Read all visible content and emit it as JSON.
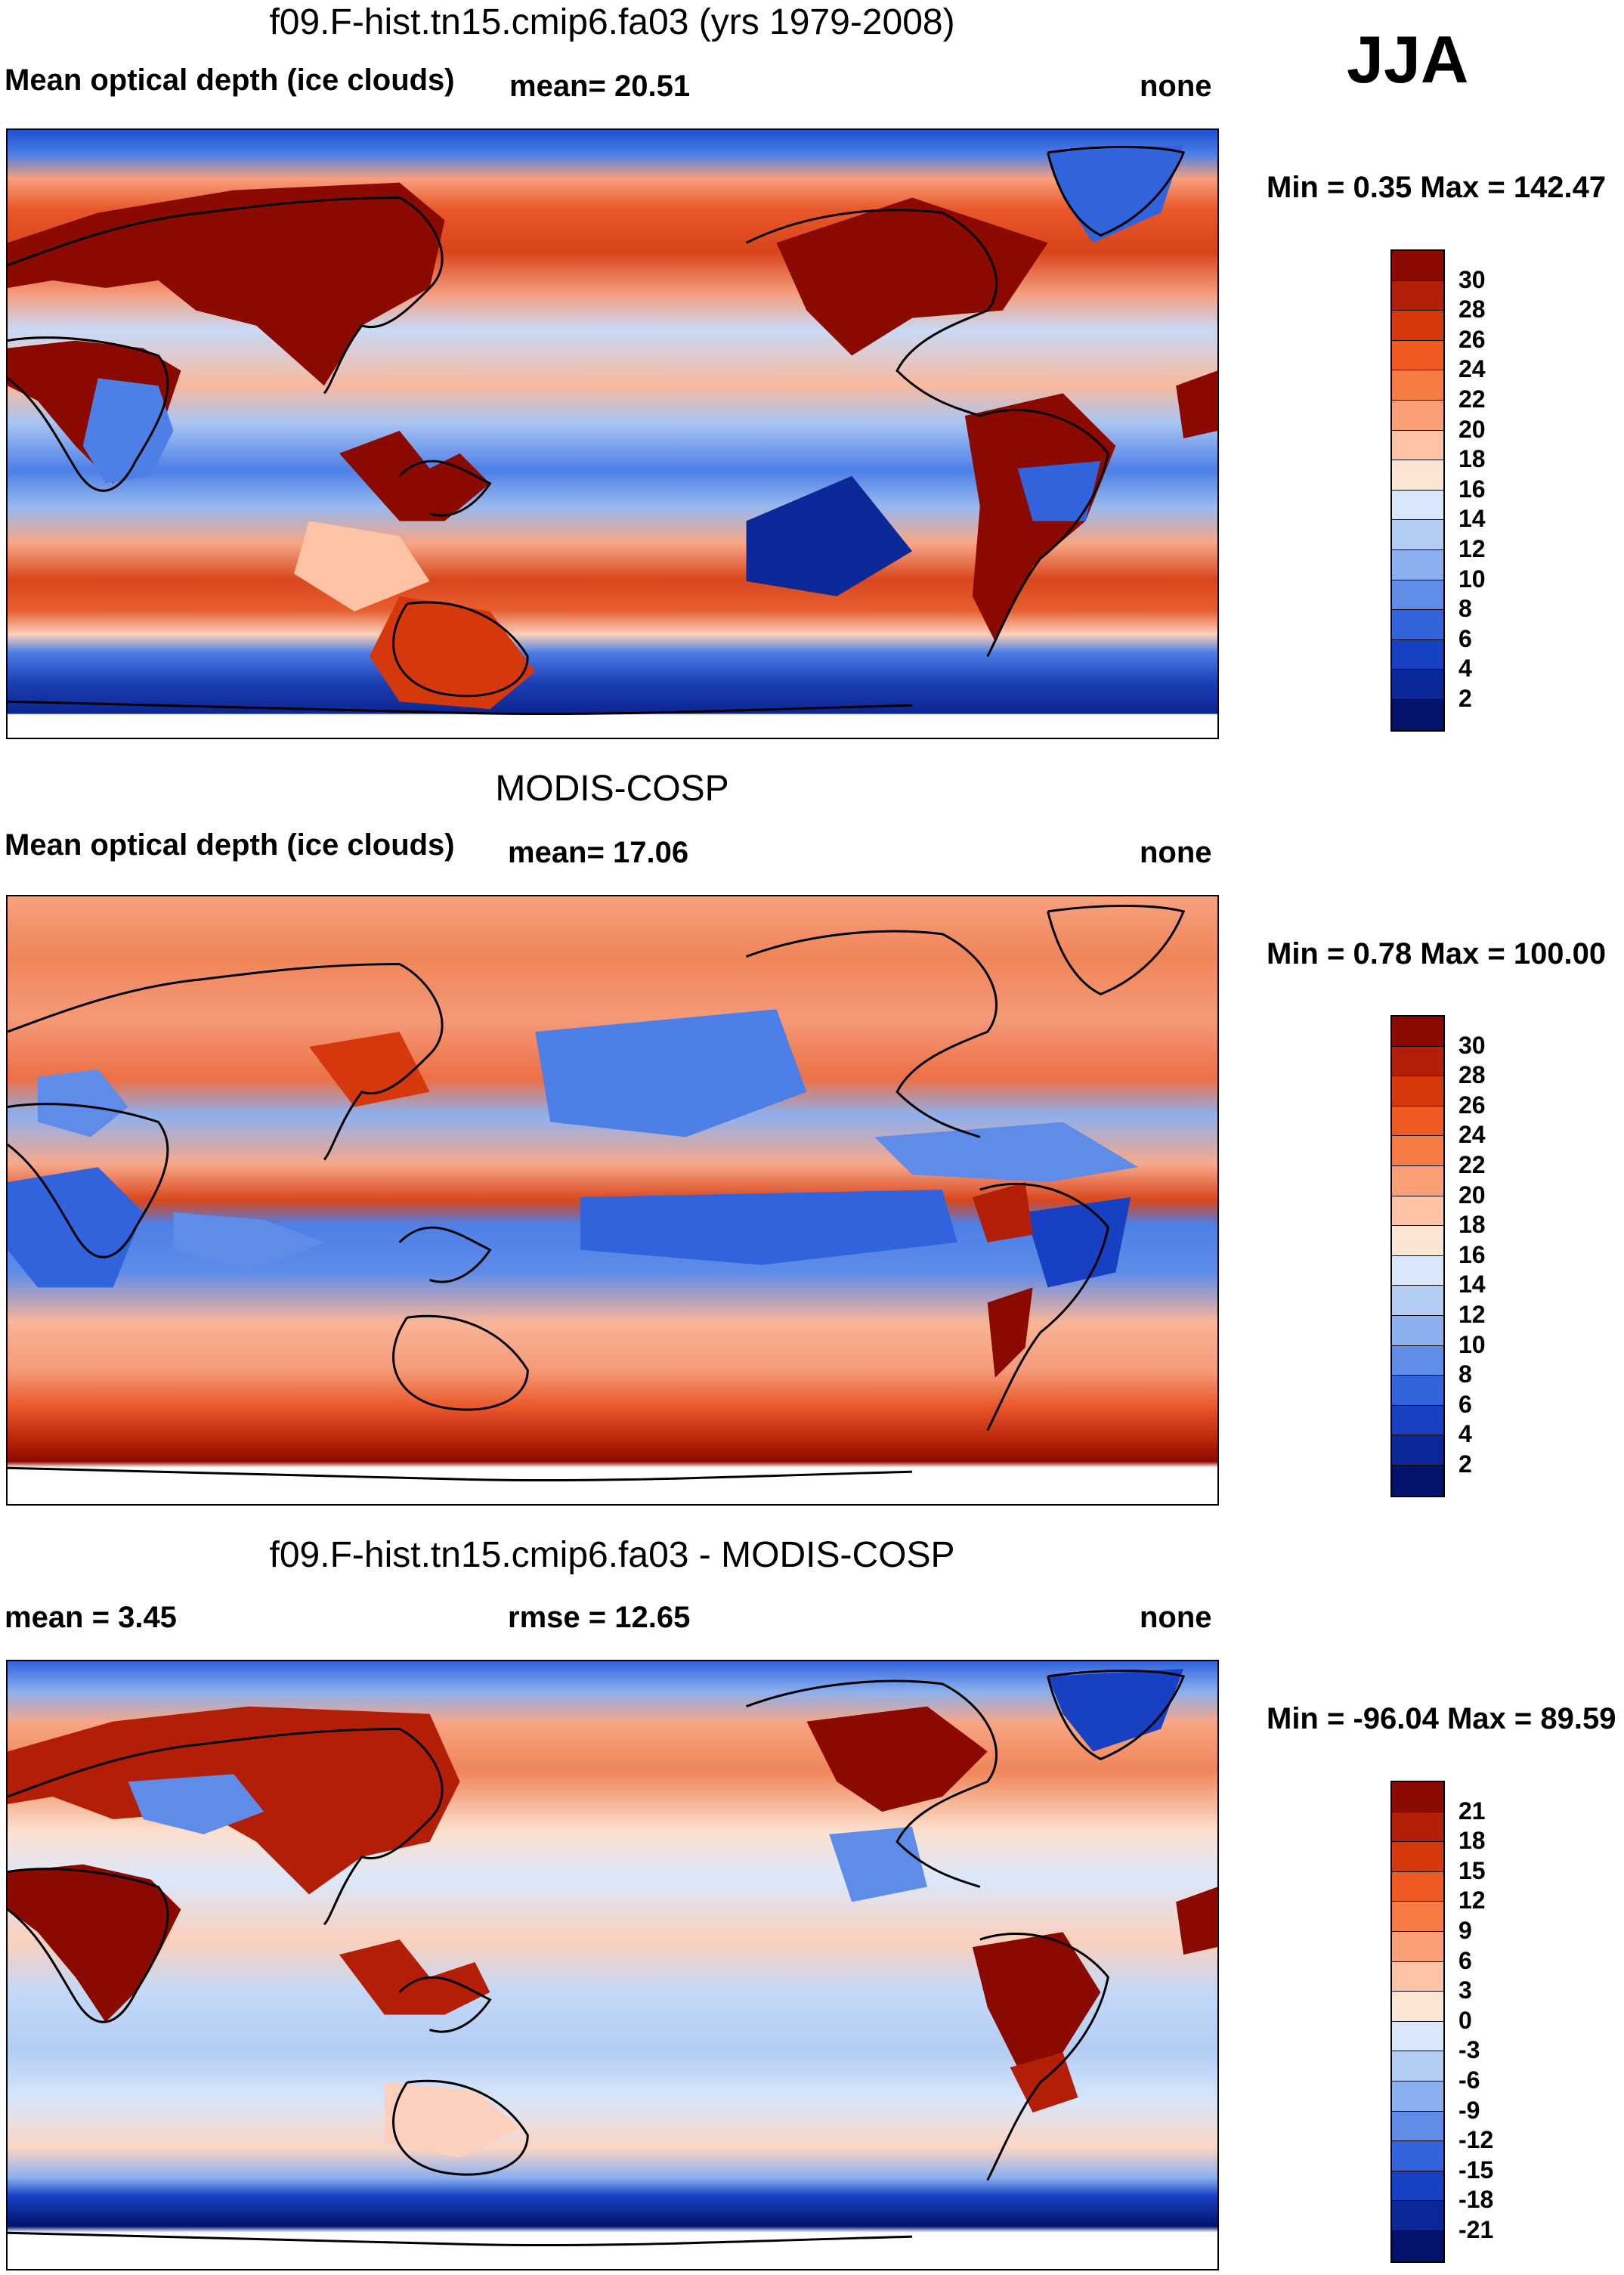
{
  "season": "JJA",
  "panels": [
    {
      "title": "f09.F-hist.tn15.cmip6.fa03 (yrs 1979-2008)",
      "left_label": "Mean optical depth (ice clouds)",
      "mid_label": "mean=  20.51",
      "right_label": "none",
      "minmax": "Min =   0.35 Max = 142.47",
      "map_style": "model",
      "colorbar": {
        "labels": [
          "30",
          "28",
          "26",
          "24",
          "22",
          "20",
          "18",
          "16",
          "14",
          "12",
          "10",
          "8",
          "6",
          "4",
          "2"
        ],
        "colors": [
          "#8b0a00",
          "#b31f06",
          "#d6380e",
          "#ee5a20",
          "#f67b45",
          "#fa9f76",
          "#fcc3a4",
          "#fde5d4",
          "#d8e8fa",
          "#b3cdf5",
          "#8bb0ef",
          "#5e8ce8",
          "#3163dc",
          "#1740c2",
          "#0b2898",
          "#03136b"
        ]
      }
    },
    {
      "title": "MODIS-COSP",
      "left_label": "Mean optical depth (ice clouds)",
      "mid_label": "mean=  17.06",
      "right_label": "none",
      "minmax": "Min =   0.78 Max = 100.00",
      "map_style": "obs",
      "colorbar": {
        "labels": [
          "30",
          "28",
          "26",
          "24",
          "22",
          "20",
          "18",
          "16",
          "14",
          "12",
          "10",
          "8",
          "6",
          "4",
          "2"
        ],
        "colors": [
          "#8b0a00",
          "#b31f06",
          "#d6380e",
          "#ee5a20",
          "#f67b45",
          "#fa9f76",
          "#fcc3a4",
          "#fde5d4",
          "#d8e8fa",
          "#b3cdf5",
          "#8bb0ef",
          "#5e8ce8",
          "#3163dc",
          "#1740c2",
          "#0b2898",
          "#03136b"
        ]
      }
    },
    {
      "title": "f09.F-hist.tn15.cmip6.fa03 - MODIS-COSP",
      "left_label": "mean =   3.45",
      "mid_label": "rmse =  12.65",
      "right_label": "none",
      "minmax": "Min = -96.04 Max =  89.59",
      "map_style": "diff",
      "colorbar": {
        "labels": [
          "21",
          "18",
          "15",
          "12",
          "9",
          "6",
          "3",
          "0",
          "-3",
          "-6",
          "-9",
          "-12",
          "-15",
          "-18",
          "-21"
        ],
        "colors": [
          "#8b0a00",
          "#b31f06",
          "#d6380e",
          "#ee5a20",
          "#f67b45",
          "#fa9f76",
          "#fcc3a4",
          "#fde5d4",
          "#d8e8fa",
          "#b3cdf5",
          "#8bb0ef",
          "#5e8ce8",
          "#3163dc",
          "#1740c2",
          "#0b2898",
          "#03136b"
        ]
      }
    }
  ]
}
